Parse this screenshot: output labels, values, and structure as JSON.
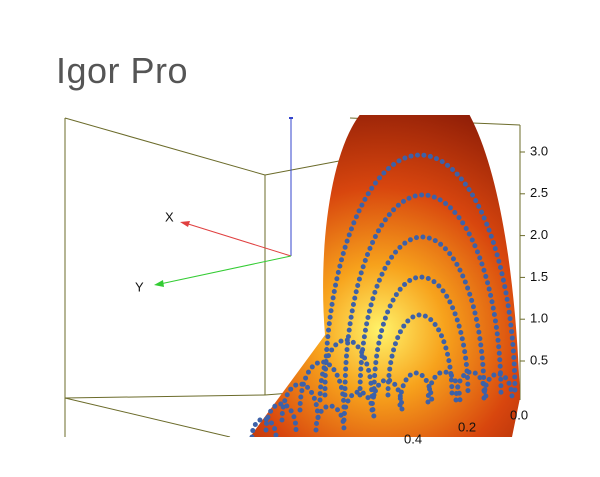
{
  "header": {
    "title": "Igor Pro"
  },
  "plot": {
    "axis_labels": {
      "x": "X",
      "y": "Y"
    },
    "z_ticks": [
      "3.0",
      "2.5",
      "2.0",
      "1.5",
      "1.0",
      "0.5"
    ],
    "corner_tick": "0.0",
    "x_ticks": [
      "0.2",
      "0.4"
    ]
  }
}
